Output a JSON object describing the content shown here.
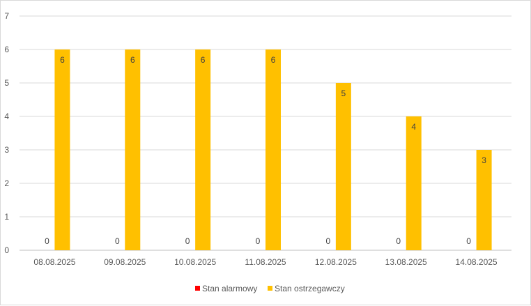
{
  "chart_data": {
    "type": "bar",
    "categories": [
      "08.08.2025",
      "09.08.2025",
      "10.08.2025",
      "11.08.2025",
      "12.08.2025",
      "13.08.2025",
      "14.08.2025"
    ],
    "series": [
      {
        "name": "Stan alarmowy",
        "color": "#ff0000",
        "values": [
          0,
          0,
          0,
          0,
          0,
          0,
          0
        ]
      },
      {
        "name": "Stan ostrzegawczy",
        "color": "#ffc000",
        "values": [
          6,
          6,
          6,
          6,
          5,
          4,
          3
        ]
      }
    ],
    "yticks": [
      0,
      1,
      2,
      3,
      4,
      5,
      6,
      7
    ],
    "ylim": [
      0,
      7
    ],
    "grid": true,
    "legend": "bottom",
    "data_labels": true
  }
}
